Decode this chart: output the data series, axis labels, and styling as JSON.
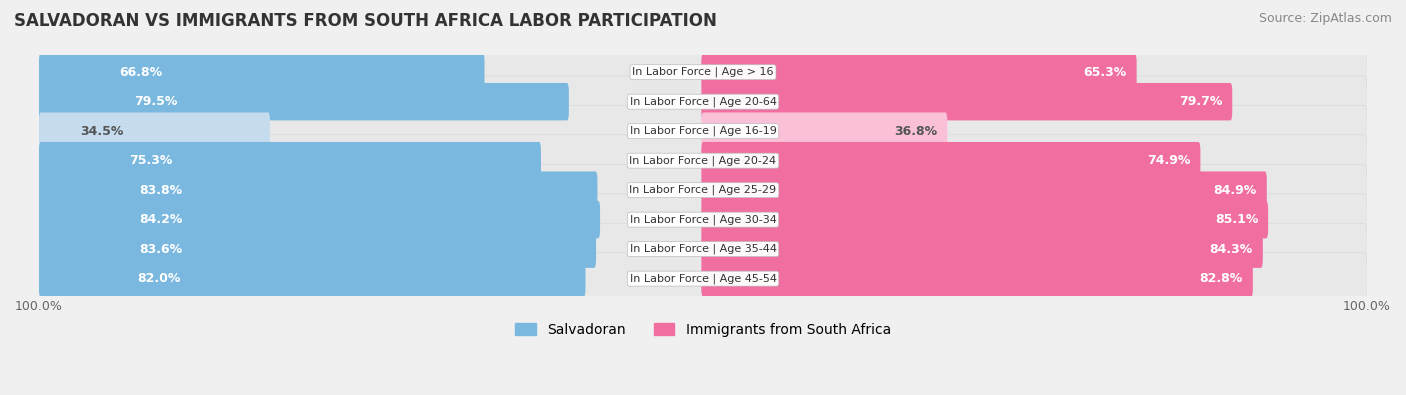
{
  "title": "SALVADORAN VS IMMIGRANTS FROM SOUTH AFRICA LABOR PARTICIPATION",
  "source": "Source: ZipAtlas.com",
  "categories": [
    "In Labor Force | Age > 16",
    "In Labor Force | Age 20-64",
    "In Labor Force | Age 16-19",
    "In Labor Force | Age 20-24",
    "In Labor Force | Age 25-29",
    "In Labor Force | Age 30-34",
    "In Labor Force | Age 35-44",
    "In Labor Force | Age 45-54"
  ],
  "salvadoran_values": [
    66.8,
    79.5,
    34.5,
    75.3,
    83.8,
    84.2,
    83.6,
    82.0
  ],
  "southafrica_values": [
    65.3,
    79.7,
    36.8,
    74.9,
    84.9,
    85.1,
    84.3,
    82.8
  ],
  "salvadoran_color": "#7ab8e0",
  "salvadoran_color_light": "#c5dcee",
  "southafrica_color": "#f06fa0",
  "southafrica_color_light": "#f9c0d8",
  "row_bg_color": "#e8e8e8",
  "background_color": "#f0f0f0",
  "label_color_white": "#ffffff",
  "label_color_dark": "#555555",
  "title_fontsize": 12,
  "source_fontsize": 9,
  "bar_label_fontsize": 9,
  "category_fontsize": 8,
  "legend_fontsize": 10,
  "axis_label_fontsize": 9,
  "max_value": 100.0
}
